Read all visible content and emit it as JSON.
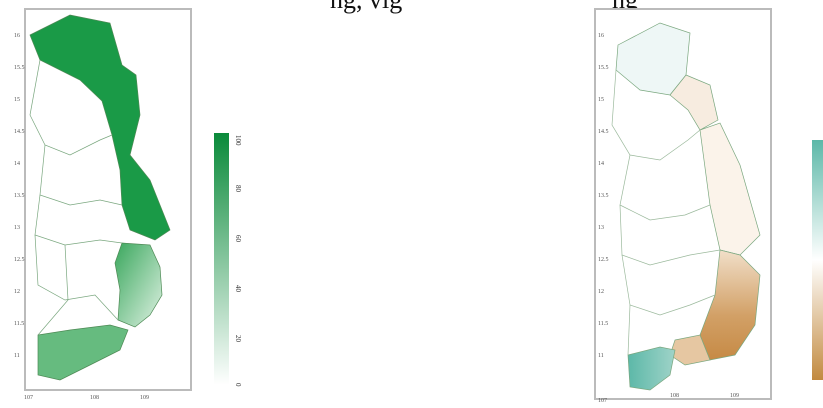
{
  "caption": {
    "left_fragment": "ng, vig",
    "right_fragment": "ng"
  },
  "left_map": {
    "axis": {
      "lon_ticks": [
        "107",
        "108",
        "109"
      ],
      "lat_ticks": [
        "16",
        "15.5",
        "15",
        "14.5",
        "14",
        "13.5",
        "13",
        "12.5",
        "12",
        "11.5",
        "11"
      ]
    },
    "colorbar": {
      "ticks": [
        "100",
        "80",
        "60",
        "40",
        "20",
        "0"
      ],
      "range": [
        0,
        100
      ],
      "colors": [
        "#0a8a3a",
        "#ffffff"
      ]
    },
    "fill_color": "#1a9a47"
  },
  "right_map": {
    "axis": {
      "lon_ticks": [
        "107",
        "108",
        "109"
      ],
      "lat_ticks": [
        "16",
        "15.5",
        "15",
        "14.5",
        "14",
        "13.5",
        "13",
        "12.5",
        "12",
        "11.5",
        "11"
      ]
    },
    "colorbar": {
      "colors": [
        "#5cb8a8",
        "#ffffff",
        "#c28a3f"
      ]
    }
  }
}
